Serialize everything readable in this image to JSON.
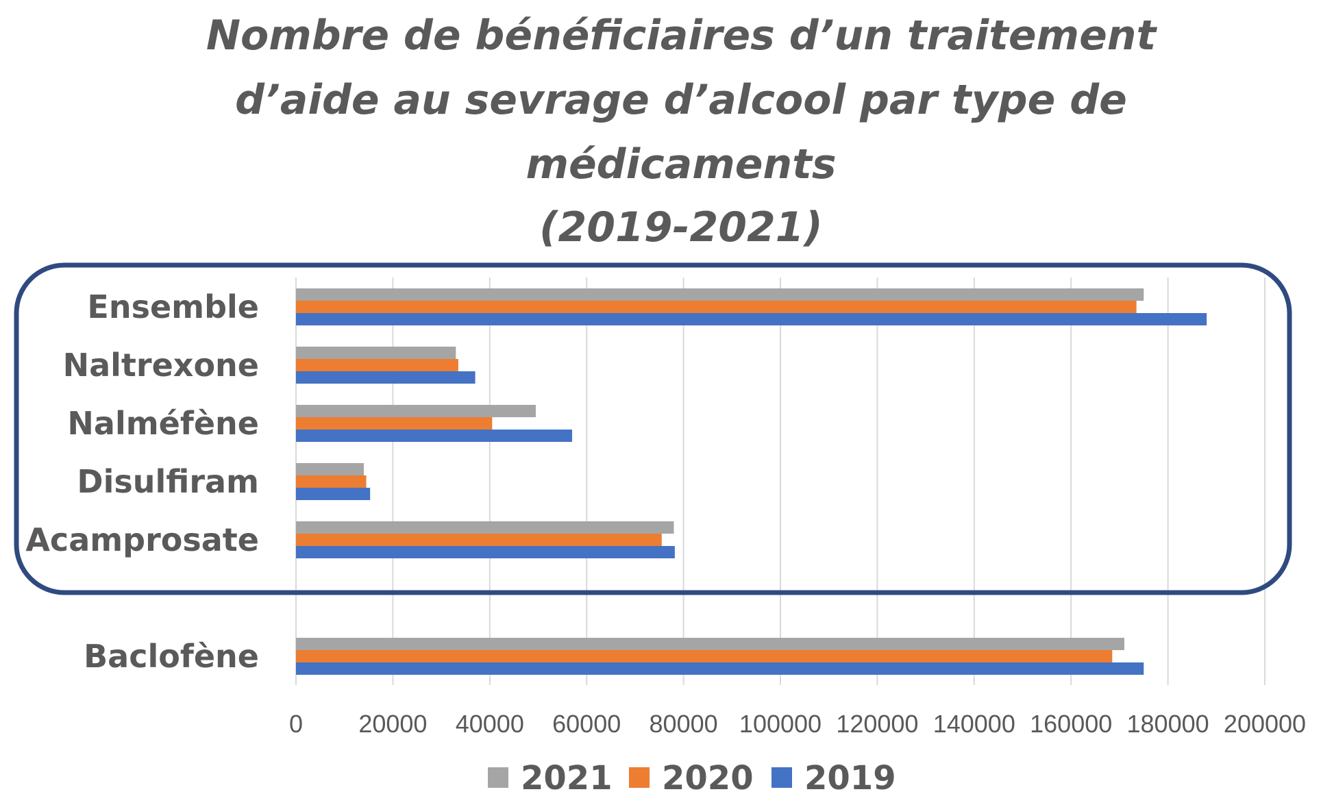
{
  "chart_data": {
    "type": "bar",
    "orientation": "horizontal",
    "title_lines": [
      "Nombre de bénéficiaires d’un traitement",
      "d’aide au sevrage d’alcool par type de",
      "médicaments",
      "(2019-2021)"
    ],
    "categories": [
      "Ensemble",
      "Naltrexone",
      "Nalméfène",
      "Disulfiram",
      "Acamprosate",
      "Baclofène"
    ],
    "series": [
      {
        "name": "2021",
        "color": "#a5a5a5",
        "values": [
          175000,
          33000,
          49500,
          14000,
          78000,
          171000
        ]
      },
      {
        "name": "2020",
        "color": "#ed7d31",
        "values": [
          173500,
          33500,
          40500,
          14500,
          75500,
          168500
        ]
      },
      {
        "name": "2019",
        "color": "#4472c4",
        "values": [
          188000,
          37000,
          57000,
          15300,
          78200,
          175000
        ]
      }
    ],
    "x_ticks": [
      "0",
      "20000",
      "40000",
      "60000",
      "80000",
      "100000",
      "120000",
      "140000",
      "160000",
      "180000",
      "200000"
    ],
    "xlim": [
      0,
      200000
    ],
    "grid": "vertical",
    "legend_position": "bottom",
    "highlight_box": {
      "categories": [
        "Ensemble",
        "Naltrexone",
        "Nalméfène",
        "Disulfiram",
        "Acamprosate"
      ],
      "color": "#2f4a80"
    }
  }
}
